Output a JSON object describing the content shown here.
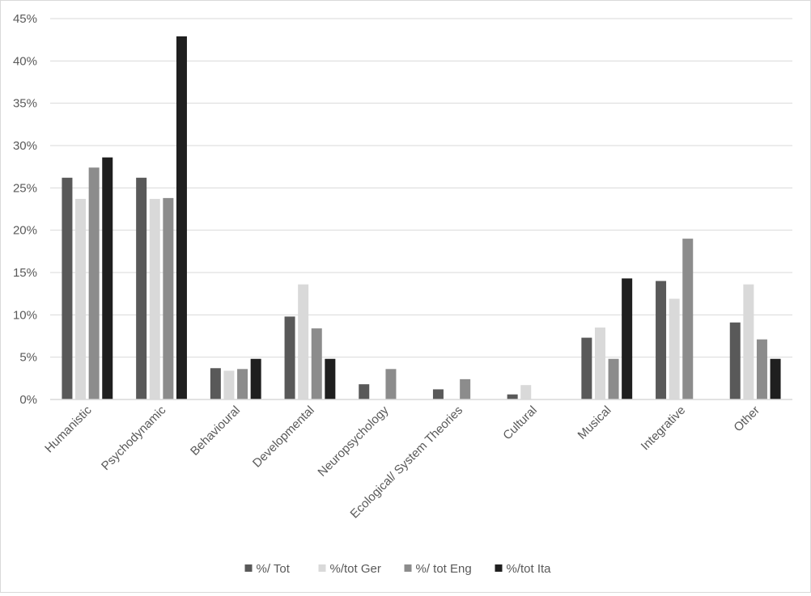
{
  "chart_data": {
    "type": "bar",
    "title": "",
    "xlabel": "",
    "ylabel": "",
    "ylim": [
      0,
      45
    ],
    "y_ticks": [
      "0%",
      "5%",
      "10%",
      "15%",
      "20%",
      "25%",
      "30%",
      "35%",
      "40%",
      "45%"
    ],
    "grid": true,
    "legend_position": "bottom",
    "categories": [
      "Humanistic",
      "Psychodynamic",
      "Behavioural",
      "Developmental",
      "Neuropsychology",
      "Ecological/ System Theories",
      "Cultural",
      "Musical",
      "Integrative",
      "Other"
    ],
    "series": [
      {
        "name": "%/ Tot",
        "color": "#595959",
        "values": [
          26.2,
          26.2,
          3.7,
          9.8,
          1.8,
          1.2,
          0.6,
          7.3,
          14.0,
          9.1
        ]
      },
      {
        "name": "%/tot Ger",
        "color": "#d9d9d9",
        "values": [
          23.7,
          23.7,
          3.4,
          13.6,
          0.0,
          0.0,
          1.7,
          8.5,
          11.9,
          13.6
        ]
      },
      {
        "name": "%/ tot Eng",
        "color": "#8c8c8c",
        "values": [
          27.4,
          23.8,
          3.6,
          8.4,
          3.6,
          2.4,
          0.0,
          4.8,
          19.0,
          7.1
        ]
      },
      {
        "name": "%/tot Ita",
        "color": "#1f1f1f",
        "values": [
          28.6,
          42.9,
          4.8,
          4.8,
          0.0,
          0.0,
          0.0,
          14.3,
          0.0,
          4.8
        ]
      }
    ]
  }
}
